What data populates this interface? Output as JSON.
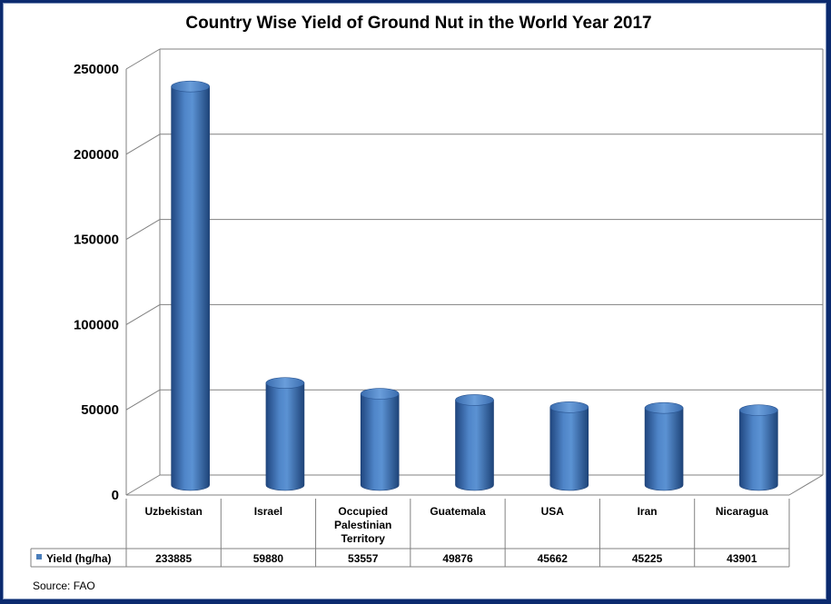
{
  "chart_data": {
    "type": "bar",
    "style": "3d-cylinder",
    "title": "Country Wise Yield of Ground Nut in the World Year 2017",
    "categories": [
      [
        "Uzbekistan"
      ],
      [
        "Israel"
      ],
      [
        "Occupied",
        "Palestinian",
        "Territory"
      ],
      [
        "Guatemala"
      ],
      [
        "USA"
      ],
      [
        "Iran"
      ],
      [
        "Nicaragua"
      ]
    ],
    "series": [
      {
        "name": "Yield (hg/ha)",
        "values": [
          233885,
          59880,
          53557,
          49876,
          45662,
          45225,
          43901
        ],
        "value_labels": [
          "233885",
          "59880",
          "53557",
          "49876",
          "45662",
          "45225",
          "43901"
        ],
        "color": "#4a7ebb"
      }
    ],
    "yticks": [
      "0",
      "50000",
      "100000",
      "150000",
      "200000",
      "250000"
    ],
    "ylim": [
      0,
      250000
    ],
    "grid": true,
    "legend": "data-table-left"
  },
  "source": "Source: FAO"
}
